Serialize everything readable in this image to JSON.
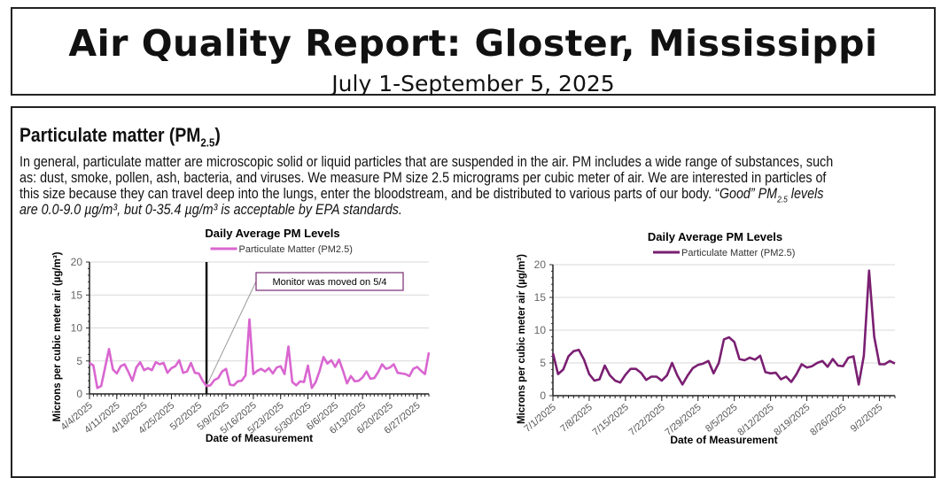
{
  "header": {
    "title": "Air Quality Report: Gloster, Mississippi",
    "subtitle": "July 1-September 5, 2025"
  },
  "section": {
    "title": "Particulate matter (PM",
    "title_sub": "2.5",
    "title_end": ")",
    "lines": [
      "In general, particulate matter are microscopic solid or liquid particles that are suspended in the air. PM includes a wide range of substances, such",
      "as: dust, smoke, pollen, ash, bacteria, and viruses. We measure PM size 2.5 micrograms per cubic meter of air. We are interested in particles of",
      "this size because they can travel deep into the lungs, enter the bloodstream, and be distributed to various parts of our body. “"
    ],
    "line3_italic": "Good”",
    "line3_pm": " PM",
    "line3_sub": "2.5",
    "line3_end": " levels",
    "line4_italic": "are 0.0-9.0 µg/m³, but 0-35.4 µg/m³ is acceptable by EPA standards."
  },
  "chart_data": [
    {
      "type": "line",
      "title": "Daily Average PM Levels",
      "xlabel": "Date of Measurement",
      "ylabel": "Microns per cubic meter air (µg/m³)",
      "ylim": [
        0,
        20
      ],
      "yticks": [
        0,
        5,
        10,
        15,
        20
      ],
      "grid": true,
      "legend": "top",
      "color": "#d966d0",
      "x_start": "4/4/2025",
      "xticks": [
        "4/4/2025",
        "4/11/2025",
        "4/18/2025",
        "4/25/2025",
        "5/2/2025",
        "5/9/2025",
        "5/16/2025",
        "5/23/2025",
        "5/30/2025",
        "6/6/2025",
        "6/13/2025",
        "6/20/2025",
        "6/27/2025"
      ],
      "series": [
        {
          "name": "Particulate Matter (PM2.5)",
          "values": [
            4.7,
            4.3,
            0.9,
            1.2,
            4.0,
            6.8,
            3.7,
            3.1,
            4.2,
            4.5,
            3.3,
            2.0,
            4.0,
            4.8,
            3.6,
            3.9,
            3.6,
            4.8,
            4.5,
            4.7,
            3.2,
            3.9,
            4.2,
            5.1,
            3.2,
            3.4,
            4.7,
            3.2,
            3.1,
            2.0,
            1.2,
            1.3,
            2.1,
            2.4,
            3.4,
            3.8,
            1.4,
            1.3,
            1.9,
            2.0,
            2.8,
            11.3,
            3.0,
            3.5,
            3.8,
            3.4,
            3.9,
            3.1,
            4.0,
            4.2,
            3.0,
            7.2,
            1.8,
            1.3,
            1.9,
            1.8,
            4.3,
            0.9,
            1.8,
            3.5,
            5.6,
            4.6,
            5.1,
            4.1,
            5.2,
            3.5,
            1.6,
            2.7,
            1.9,
            2.0,
            2.5,
            3.4,
            2.3,
            2.4,
            3.3,
            4.5,
            3.8,
            4.0,
            4.5,
            3.2,
            3.1,
            3.0,
            2.7,
            3.8,
            4.1,
            3.5,
            3.0,
            6.3
          ]
        }
      ],
      "annotation": {
        "text": "Monitor was moved on 5/4",
        "date": "5/4/2025"
      }
    },
    {
      "type": "line",
      "title": "Daily Average PM Levels",
      "xlabel": "Date of Measurement",
      "ylabel": "Microns per cubic meter air  (µg/m³)",
      "ylim": [
        0,
        20
      ],
      "yticks": [
        0,
        5,
        10,
        15,
        20
      ],
      "grid": true,
      "legend": "top",
      "color": "#7a1f72",
      "x_start": "7/1/2025",
      "xticks": [
        "7/1/2025",
        "7/8/2025",
        "7/15/2025",
        "7/22/2025",
        "7/29/2025",
        "8/5/2025",
        "8/12/2025",
        "8/19/2025",
        "8/26/2025",
        "9/2/2025"
      ],
      "series": [
        {
          "name": "Particulate Matter (PM2.5)",
          "values": [
            6.5,
            3.3,
            4.0,
            6.0,
            6.8,
            7.0,
            5.5,
            3.3,
            2.3,
            2.5,
            4.6,
            3.1,
            2.3,
            2.0,
            3.2,
            4.1,
            4.1,
            3.5,
            2.4,
            2.9,
            2.9,
            2.3,
            3.1,
            5.0,
            3.1,
            1.7,
            3.1,
            4.2,
            4.7,
            4.9,
            5.3,
            3.4,
            5.0,
            8.6,
            8.9,
            8.2,
            5.6,
            5.4,
            5.8,
            5.5,
            6.1,
            3.6,
            3.4,
            3.5,
            2.5,
            2.9,
            2.1,
            3.3,
            4.8,
            4.3,
            4.5,
            5.0,
            5.3,
            4.4,
            5.6,
            4.6,
            4.5,
            5.8,
            6.0,
            1.7,
            6.1,
            19.1,
            9.0,
            4.8,
            4.8,
            5.3,
            4.9
          ]
        }
      ]
    }
  ]
}
